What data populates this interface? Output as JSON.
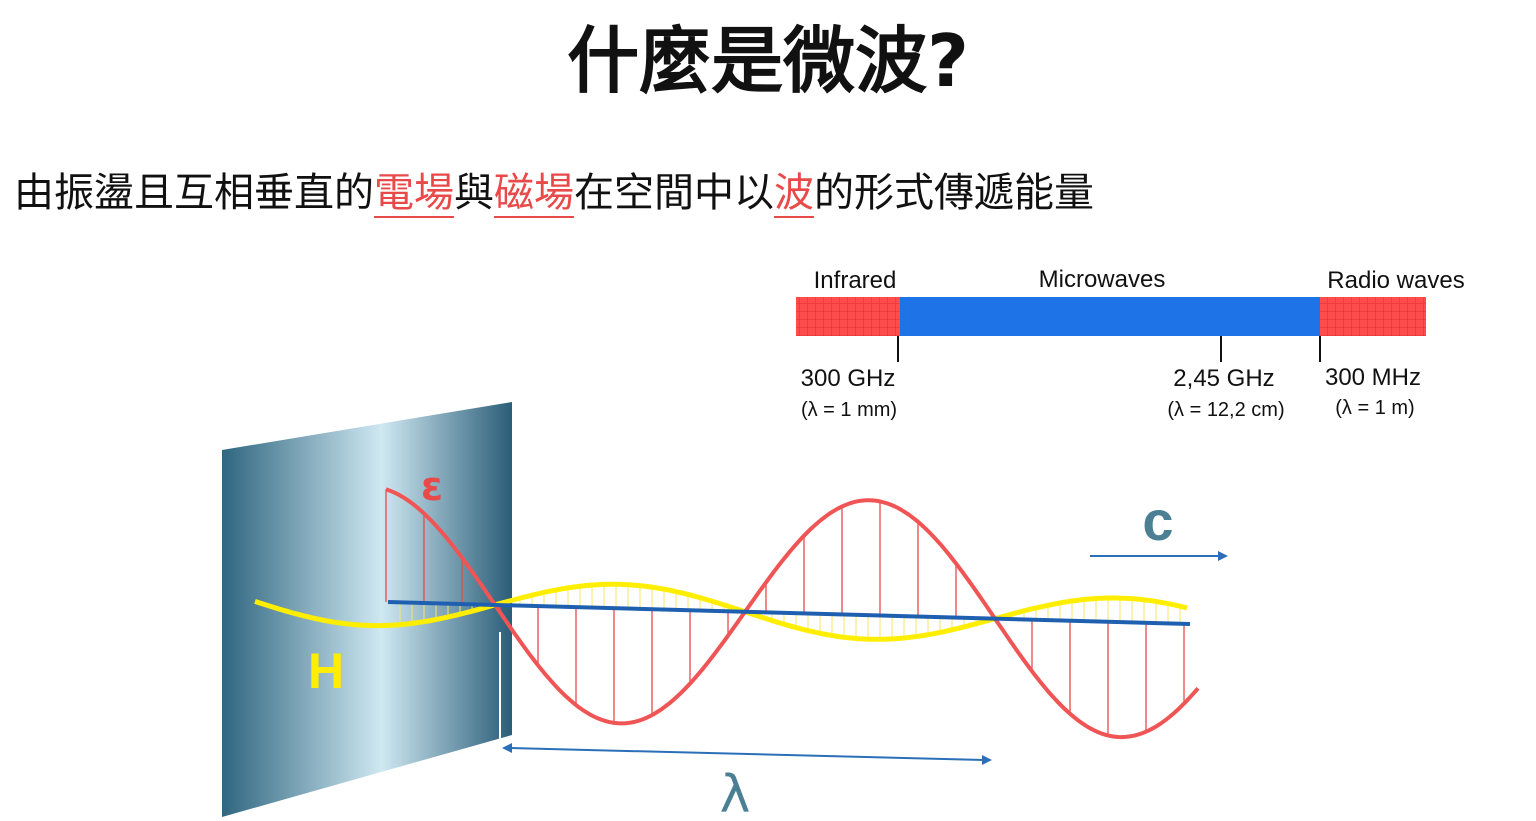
{
  "title": "什麼是微波?",
  "subtitle": [
    "由振盪且互相垂直的",
    "電場",
    "與",
    "磁場",
    "在空間中以",
    "波",
    "的形式傳遞能量"
  ],
  "spectrum": {
    "bands": [
      "Infrared",
      "Microwaves",
      "Radio waves"
    ],
    "markers": [
      {
        "frequency": "300 GHz",
        "wavelength": "(λ = 1 mm)"
      },
      {
        "frequency": "2,45 GHz",
        "wavelength": "(λ = 12,2 cm)"
      },
      {
        "frequency": "300 MHz",
        "wavelength": "(λ = 1 m)"
      }
    ]
  },
  "diagram": {
    "e_label": "ε",
    "h_label": "H",
    "c_label": "c",
    "lambda_label": "λ"
  }
}
